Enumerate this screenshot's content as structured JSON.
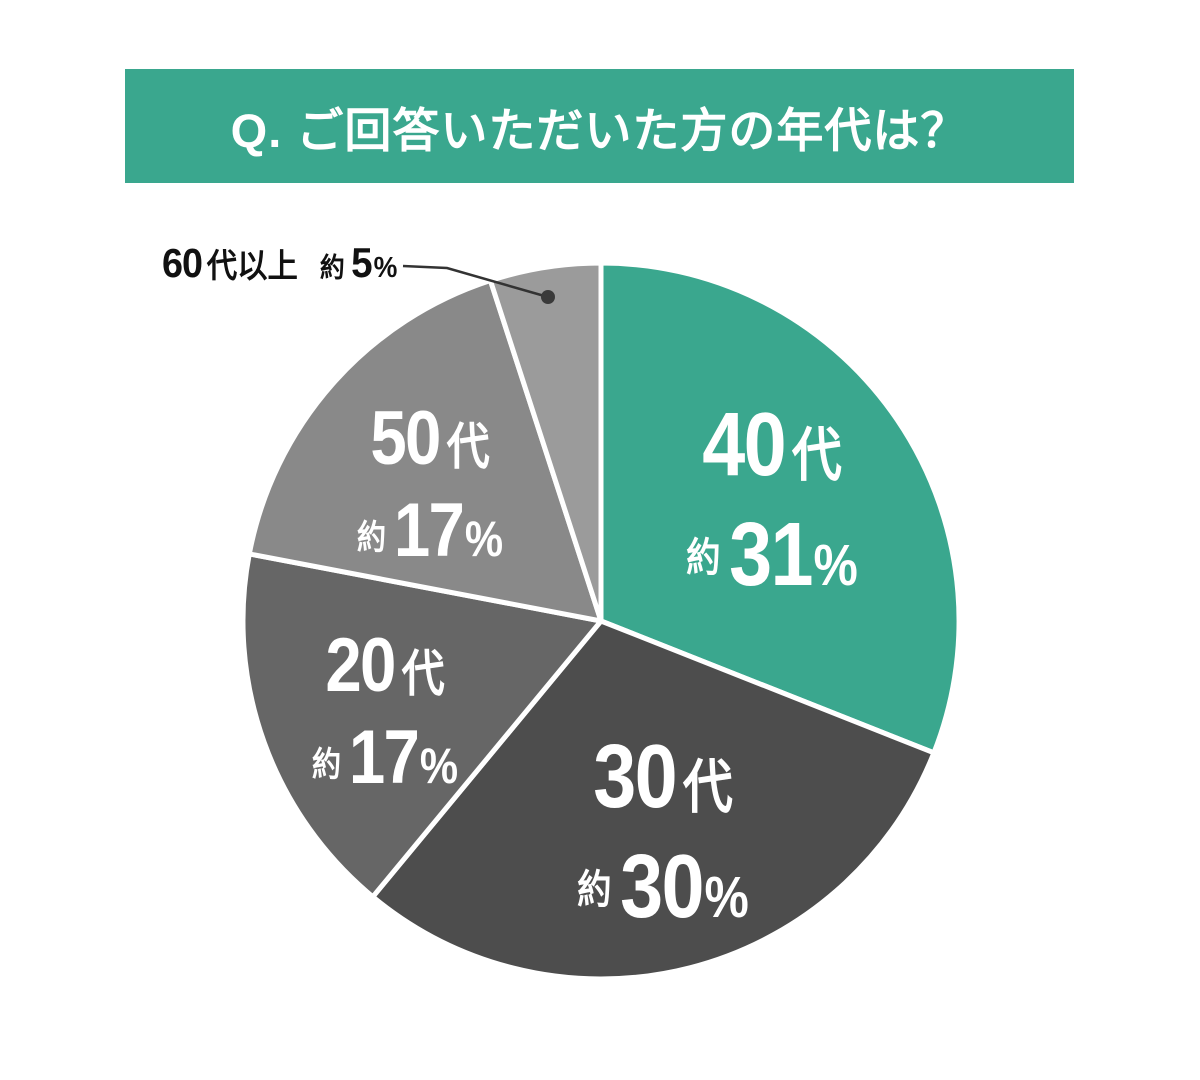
{
  "header": {
    "title": "Q. ご回答いただいた方の年代は？",
    "bg_color": "#3aa78e",
    "text_color": "#ffffff"
  },
  "chart_data": {
    "type": "pie",
    "title": "Q. ご回答いただいた方の年代は？",
    "unit": "%",
    "categories": [
      "40代",
      "30代",
      "20代",
      "50代",
      "60代以上"
    ],
    "values": [
      31,
      30,
      17,
      17,
      5
    ],
    "direction": "clockwise",
    "start_angle_deg": 0,
    "stroke_color": "#ffffff",
    "legend": "none",
    "slices": [
      {
        "key": "40s",
        "num": "60",
        "color": "#3aa78e"
      },
      {
        "key": "30s",
        "num": "60",
        "color": "#4d4d4d"
      },
      {
        "key": "20s",
        "num": "60",
        "color": "#666666"
      },
      {
        "key": "50s",
        "num": "60",
        "color": "#898989"
      },
      {
        "key": "60s-plus",
        "num": "60",
        "color": "#9b9b9b"
      }
    ],
    "labels": {
      "s40": {
        "num": "40",
        "suffix": "代",
        "approx": "約",
        "value": "31",
        "unit": "%"
      },
      "s30": {
        "num": "30",
        "suffix": "代",
        "approx": "約",
        "value": "30",
        "unit": "%"
      },
      "s20": {
        "num": "20",
        "suffix": "代",
        "approx": "約",
        "value": "17",
        "unit": "%"
      },
      "s50": {
        "num": "50",
        "suffix": "代",
        "approx": "約",
        "value": "17",
        "unit": "%"
      },
      "s60": {
        "num": "60",
        "suffix": "代以上",
        "approx": "約",
        "value": "5",
        "unit": "%"
      }
    }
  }
}
